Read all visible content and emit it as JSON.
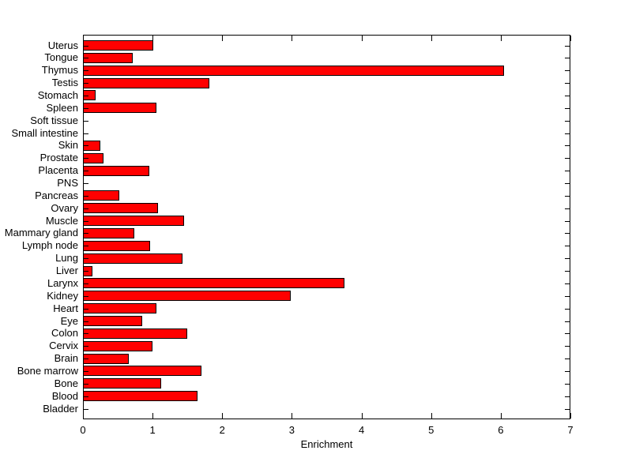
{
  "chart_data": {
    "type": "bar",
    "orientation": "horizontal",
    "title": "",
    "xlabel": "Enrichment",
    "ylabel": "",
    "xlim": [
      0,
      7
    ],
    "x_ticks": [
      0,
      1,
      2,
      3,
      4,
      5,
      6,
      7
    ],
    "grid": false,
    "legend": null,
    "background_color": "#ffffff",
    "bar_color": "#ff0000",
    "bar_edge_color": "#000000",
    "axis_color": "#000000",
    "categories": [
      "Uterus",
      "Tongue",
      "Thymus",
      "Testis",
      "Stomach",
      "Spleen",
      "Soft tissue",
      "Small intestine",
      "Skin",
      "Prostate",
      "Placenta",
      "PNS",
      "Pancreas",
      "Ovary",
      "Muscle",
      "Mammary gland",
      "Lymph node",
      "Lung",
      "Liver",
      "Larynx",
      "Kidney",
      "Heart",
      "Eye",
      "Colon",
      "Cervix",
      "Brain",
      "Bone marrow",
      "Bone",
      "Blood",
      "Bladder"
    ],
    "values": [
      1.01,
      0.71,
      6.05,
      1.81,
      0.18,
      1.06,
      0.01,
      0.01,
      0.25,
      0.3,
      0.95,
      0.01,
      0.52,
      1.08,
      1.45,
      0.74,
      0.96,
      1.43,
      0.14,
      3.75,
      2.98,
      1.05,
      0.85,
      1.5,
      1.0,
      0.66,
      1.7,
      1.12,
      1.65,
      0.01
    ]
  }
}
